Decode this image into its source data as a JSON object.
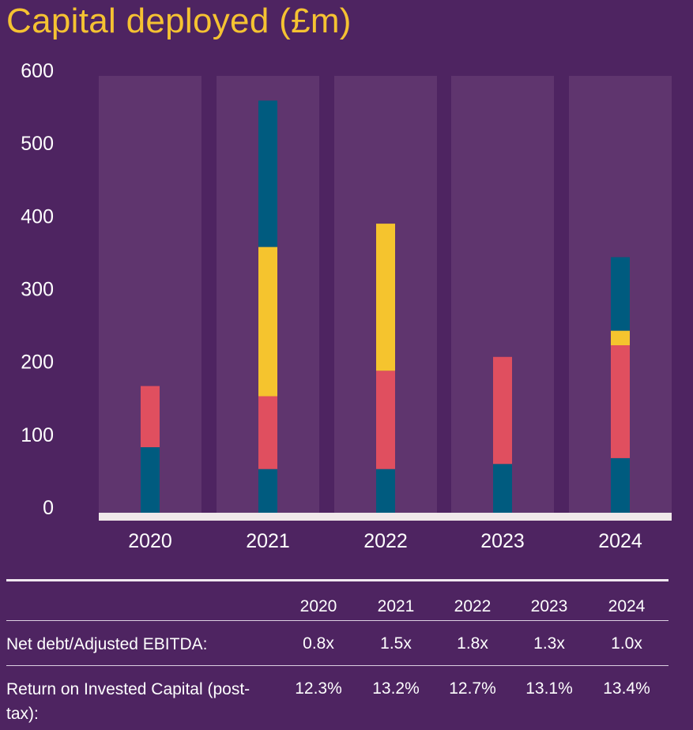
{
  "title": "Capital deployed (£m)",
  "chart_data": {
    "type": "bar",
    "stacked": true,
    "title": "Capital deployed (£m)",
    "categories": [
      "2020",
      "2021",
      "2022",
      "2023",
      "2024"
    ],
    "y_ticks": [
      "0",
      "100",
      "200",
      "300",
      "400",
      "500",
      "600"
    ],
    "ylim": [
      0,
      600
    ],
    "series": [
      {
        "color": "#005b7f",
        "values": [
          90,
          60,
          60,
          67,
          75
        ]
      },
      {
        "color": "#e04f5f",
        "values": [
          84,
          100,
          135,
          147,
          155
        ]
      },
      {
        "color": "#f5c42e",
        "values": [
          0,
          205,
          202,
          0,
          20
        ]
      },
      {
        "color": "#005b7f",
        "values": [
          0,
          201,
          0,
          0,
          101
        ]
      }
    ],
    "column_background_color": "#5f356e",
    "baseline_color": "#f0e8ea"
  },
  "table": {
    "years": [
      "2020",
      "2021",
      "2022",
      "2023",
      "2024"
    ],
    "rows": [
      {
        "label": "Net debt/Adjusted EBITDA:",
        "values": [
          "0.8x",
          "1.5x",
          "1.8x",
          "1.3x",
          "1.0x"
        ]
      },
      {
        "label": "Return on Invested Capital (post-tax):",
        "values": [
          "12.3%",
          "13.2%",
          "12.7%",
          "13.1%",
          "13.4%"
        ]
      }
    ]
  }
}
